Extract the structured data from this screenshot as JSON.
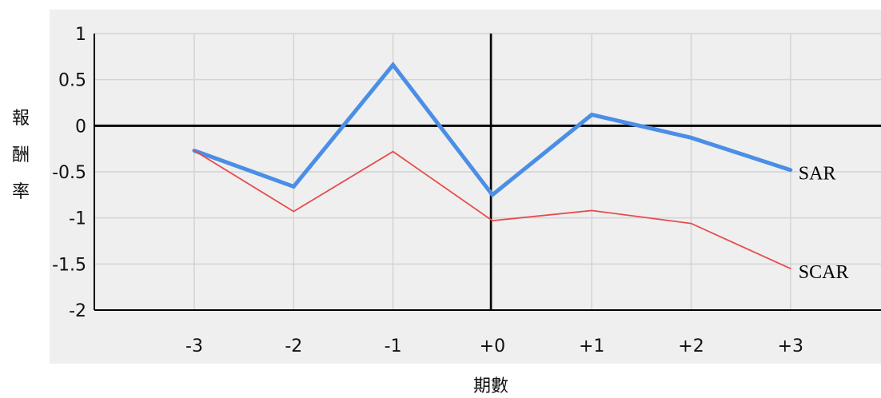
{
  "chart_data": {
    "type": "line",
    "categories": [
      "-3",
      "-2",
      "-1",
      "+0",
      "+1",
      "+2",
      "+3"
    ],
    "series": [
      {
        "name": "SAR",
        "values": [
          -0.27,
          -0.66,
          0.66,
          -0.75,
          0.12,
          -0.13,
          -0.48
        ],
        "color": "#4a8ee6"
      },
      {
        "name": "SCAR",
        "values": [
          -0.27,
          -0.93,
          -0.28,
          -1.03,
          -0.92,
          -1.06,
          -1.55
        ],
        "color": "#e84c4c"
      }
    ],
    "yticks": [
      "1",
      "0.5",
      "0",
      "-0.5",
      "-1",
      "-1.5",
      "-2"
    ],
    "ylim": [
      -2,
      1
    ],
    "ylabel": "報酬率",
    "xlabel": "期數",
    "grid": true,
    "colors": {
      "plot_background": "#efefef",
      "grid": "#d4d4d4",
      "zero_line": "#000000"
    }
  }
}
